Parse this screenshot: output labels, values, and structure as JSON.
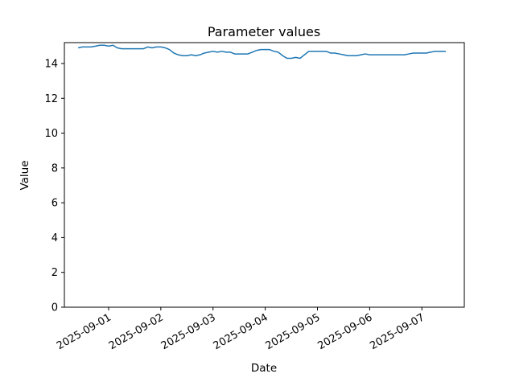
{
  "figure": {
    "background": "#ffffff",
    "border_color": "#000000"
  },
  "chart_data": {
    "type": "line",
    "title": "Parameter values",
    "xlabel": "Date",
    "ylabel": "Value",
    "line_color": "#1f77b4",
    "line_width": 1.5,
    "grid": false,
    "legend_position": "none",
    "ylim": [
      0,
      15.2
    ],
    "yticks": [
      0,
      2,
      4,
      6,
      8,
      10,
      12,
      14
    ],
    "xlim": [
      "2025-08-31T03:40",
      "2025-09-07T19:30"
    ],
    "xticks": [
      {
        "t": "2025-09-01T00:00",
        "label": "2025-09-01"
      },
      {
        "t": "2025-09-02T00:00",
        "label": "2025-09-02"
      },
      {
        "t": "2025-09-03T00:00",
        "label": "2025-09-03"
      },
      {
        "t": "2025-09-04T00:00",
        "label": "2025-09-04"
      },
      {
        "t": "2025-09-05T00:00",
        "label": "2025-09-05"
      },
      {
        "t": "2025-09-06T00:00",
        "label": "2025-09-06"
      },
      {
        "t": "2025-09-07T00:00",
        "label": "2025-09-07"
      }
    ],
    "xtick_rotation_deg": 30,
    "series": [
      {
        "name": "Parameter values",
        "points": [
          [
            "2025-08-31T10:00",
            14.9
          ],
          [
            "2025-08-31T12:00",
            14.95
          ],
          [
            "2025-08-31T14:00",
            14.95
          ],
          [
            "2025-08-31T16:00",
            14.95
          ],
          [
            "2025-08-31T18:00",
            15.0
          ],
          [
            "2025-08-31T20:00",
            15.05
          ],
          [
            "2025-08-31T22:00",
            15.05
          ],
          [
            "2025-09-01T00:00",
            15.0
          ],
          [
            "2025-09-01T02:00",
            15.05
          ],
          [
            "2025-09-01T04:00",
            14.9
          ],
          [
            "2025-09-01T06:00",
            14.85
          ],
          [
            "2025-09-01T08:00",
            14.85
          ],
          [
            "2025-09-01T10:00",
            14.85
          ],
          [
            "2025-09-01T12:00",
            14.85
          ],
          [
            "2025-09-01T14:00",
            14.85
          ],
          [
            "2025-09-01T16:00",
            14.85
          ],
          [
            "2025-09-01T18:00",
            14.95
          ],
          [
            "2025-09-01T20:00",
            14.9
          ],
          [
            "2025-09-01T22:00",
            14.95
          ],
          [
            "2025-09-02T00:00",
            14.95
          ],
          [
            "2025-09-02T02:00",
            14.9
          ],
          [
            "2025-09-02T04:00",
            14.8
          ],
          [
            "2025-09-02T06:00",
            14.6
          ],
          [
            "2025-09-02T08:00",
            14.5
          ],
          [
            "2025-09-02T10:00",
            14.45
          ],
          [
            "2025-09-02T12:00",
            14.45
          ],
          [
            "2025-09-02T14:00",
            14.5
          ],
          [
            "2025-09-02T16:00",
            14.45
          ],
          [
            "2025-09-02T18:00",
            14.5
          ],
          [
            "2025-09-02T20:00",
            14.6
          ],
          [
            "2025-09-02T22:00",
            14.65
          ],
          [
            "2025-09-03T00:00",
            14.7
          ],
          [
            "2025-09-03T02:00",
            14.65
          ],
          [
            "2025-09-03T04:00",
            14.7
          ],
          [
            "2025-09-03T06:00",
            14.65
          ],
          [
            "2025-09-03T08:00",
            14.65
          ],
          [
            "2025-09-03T10:00",
            14.55
          ],
          [
            "2025-09-03T12:00",
            14.55
          ],
          [
            "2025-09-03T14:00",
            14.55
          ],
          [
            "2025-09-03T16:00",
            14.55
          ],
          [
            "2025-09-03T18:00",
            14.65
          ],
          [
            "2025-09-03T20:00",
            14.75
          ],
          [
            "2025-09-03T22:00",
            14.8
          ],
          [
            "2025-09-04T00:00",
            14.8
          ],
          [
            "2025-09-04T02:00",
            14.8
          ],
          [
            "2025-09-04T04:00",
            14.7
          ],
          [
            "2025-09-04T06:00",
            14.65
          ],
          [
            "2025-09-04T08:00",
            14.45
          ],
          [
            "2025-09-04T10:00",
            14.3
          ],
          [
            "2025-09-04T12:00",
            14.3
          ],
          [
            "2025-09-04T14:00",
            14.35
          ],
          [
            "2025-09-04T16:00",
            14.3
          ],
          [
            "2025-09-04T18:00",
            14.5
          ],
          [
            "2025-09-04T20:00",
            14.7
          ],
          [
            "2025-09-04T22:00",
            14.7
          ],
          [
            "2025-09-05T00:00",
            14.7
          ],
          [
            "2025-09-05T02:00",
            14.7
          ],
          [
            "2025-09-05T04:00",
            14.7
          ],
          [
            "2025-09-05T06:00",
            14.6
          ],
          [
            "2025-09-05T08:00",
            14.6
          ],
          [
            "2025-09-05T10:00",
            14.55
          ],
          [
            "2025-09-05T12:00",
            14.5
          ],
          [
            "2025-09-05T14:00",
            14.45
          ],
          [
            "2025-09-05T16:00",
            14.45
          ],
          [
            "2025-09-05T18:00",
            14.45
          ],
          [
            "2025-09-05T20:00",
            14.5
          ],
          [
            "2025-09-05T22:00",
            14.55
          ],
          [
            "2025-09-06T00:00",
            14.5
          ],
          [
            "2025-09-06T02:00",
            14.5
          ],
          [
            "2025-09-06T04:00",
            14.5
          ],
          [
            "2025-09-06T06:00",
            14.5
          ],
          [
            "2025-09-06T08:00",
            14.5
          ],
          [
            "2025-09-06T10:00",
            14.5
          ],
          [
            "2025-09-06T12:00",
            14.5
          ],
          [
            "2025-09-06T14:00",
            14.5
          ],
          [
            "2025-09-06T16:00",
            14.5
          ],
          [
            "2025-09-06T18:00",
            14.55
          ],
          [
            "2025-09-06T20:00",
            14.6
          ],
          [
            "2025-09-06T22:00",
            14.6
          ],
          [
            "2025-09-07T00:00",
            14.6
          ],
          [
            "2025-09-07T02:00",
            14.6
          ],
          [
            "2025-09-07T04:00",
            14.65
          ],
          [
            "2025-09-07T06:00",
            14.7
          ],
          [
            "2025-09-07T08:00",
            14.7
          ],
          [
            "2025-09-07T10:00",
            14.7
          ],
          [
            "2025-09-07T11:00",
            14.7
          ]
        ]
      }
    ]
  }
}
